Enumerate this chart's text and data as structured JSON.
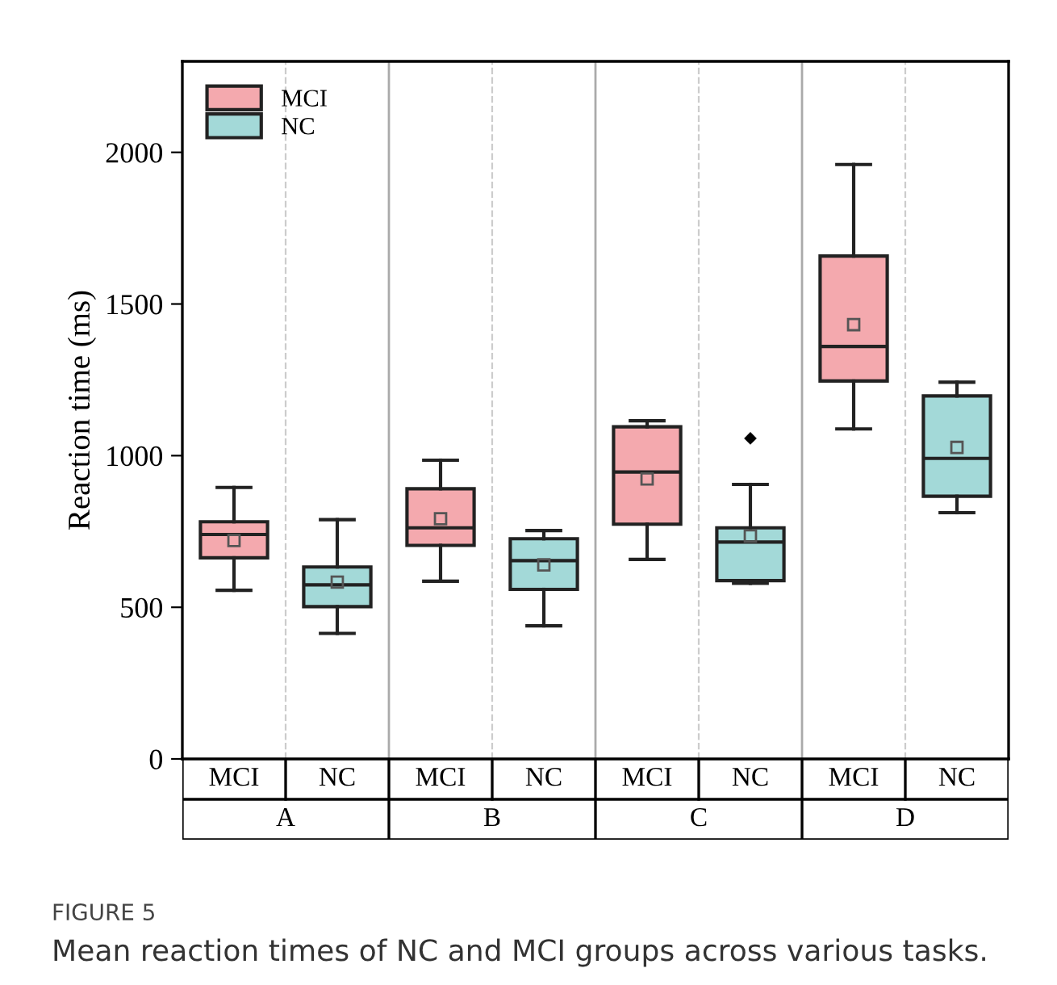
{
  "chart_data": {
    "type": "box",
    "categories": [
      "A",
      "B",
      "C",
      "D"
    ],
    "ylabel": "Reaction time (ms)",
    "ylim": [
      0,
      2300
    ],
    "yticks": [
      0,
      500,
      1000,
      1500,
      2000
    ],
    "legend": "top left",
    "grid": "x",
    "series": [
      {
        "name": "MCI",
        "color": "#f4a9ae",
        "boxes": [
          {
            "low": 556,
            "q1": 663,
            "median": 740,
            "q3": 782,
            "high": 895,
            "mean": 720
          },
          {
            "low": 586,
            "q1": 704,
            "median": 762,
            "q3": 891,
            "high": 985,
            "mean": 792
          },
          {
            "low": 658,
            "q1": 774,
            "median": 946,
            "q3": 1095,
            "high": 1115,
            "mean": 923
          },
          {
            "low": 1088,
            "q1": 1246,
            "median": 1360,
            "q3": 1658,
            "high": 1960,
            "mean": 1432
          }
        ]
      },
      {
        "name": "NC",
        "color": "#a3d9d8",
        "boxes": [
          {
            "low": 414,
            "q1": 502,
            "median": 574,
            "q3": 633,
            "high": 789,
            "mean": 583
          },
          {
            "low": 439,
            "q1": 559,
            "median": 654,
            "q3": 726,
            "high": 753,
            "mean": 640
          },
          {
            "low": 579,
            "q1": 588,
            "median": 715,
            "q3": 762,
            "high": 905,
            "mean": 735,
            "outliers": [
              1057
            ]
          },
          {
            "low": 812,
            "q1": 866,
            "median": 991,
            "q3": 1197,
            "high": 1242,
            "mean": 1027
          }
        ]
      }
    ],
    "annotations": [
      "FIGURE 5",
      "Mean reaction times of NC and MCI groups across various tasks."
    ]
  }
}
